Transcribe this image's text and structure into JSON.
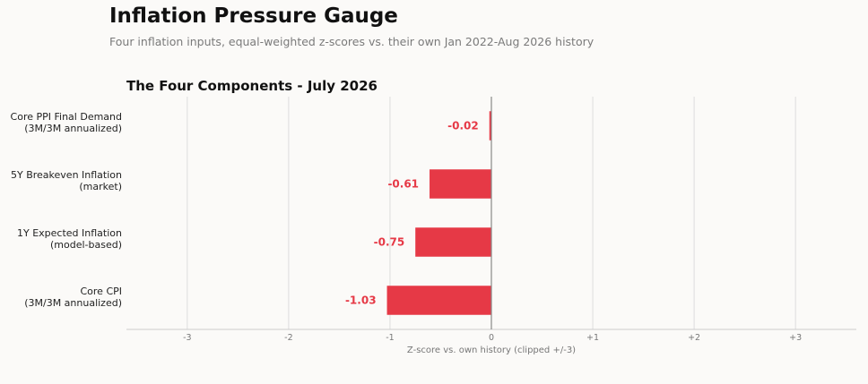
{
  "header": {
    "title": "Inflation Pressure Gauge",
    "subtitle": "Four inflation inputs, equal-weighted z-scores vs. their own Jan 2022-Aug 2026 history"
  },
  "chart_data": {
    "type": "bar",
    "orientation": "horizontal",
    "title": "The Four Components - July 2026",
    "xlabel": "Z-score vs. own history (clipped +/-3)",
    "ylabel": "",
    "xlim": [
      -3.6,
      3.6
    ],
    "xticks": [
      -3,
      -2,
      -1,
      0,
      1,
      2,
      3
    ],
    "xtick_labels": [
      "-3",
      "-2",
      "-1",
      "0",
      "+1",
      "+2",
      "+3"
    ],
    "grid": "vertical",
    "categories": [
      [
        "Core PPI Final Demand",
        "(3M/3M annualized)"
      ],
      [
        "5Y Breakeven Inflation",
        "(market)"
      ],
      [
        "1Y Expected Inflation",
        "(model-based)"
      ],
      [
        "Core CPI",
        "(3M/3M annualized)"
      ]
    ],
    "values": [
      -0.02,
      -0.61,
      -0.75,
      -1.03
    ],
    "data_labels": [
      "-0.02",
      "-0.61",
      "-0.75",
      "-1.03"
    ],
    "colors": {
      "negative": "#e63946",
      "label": "#e63946",
      "zero_line": "#888888",
      "grid": "#dddddd",
      "axis": "#cccccc"
    }
  }
}
